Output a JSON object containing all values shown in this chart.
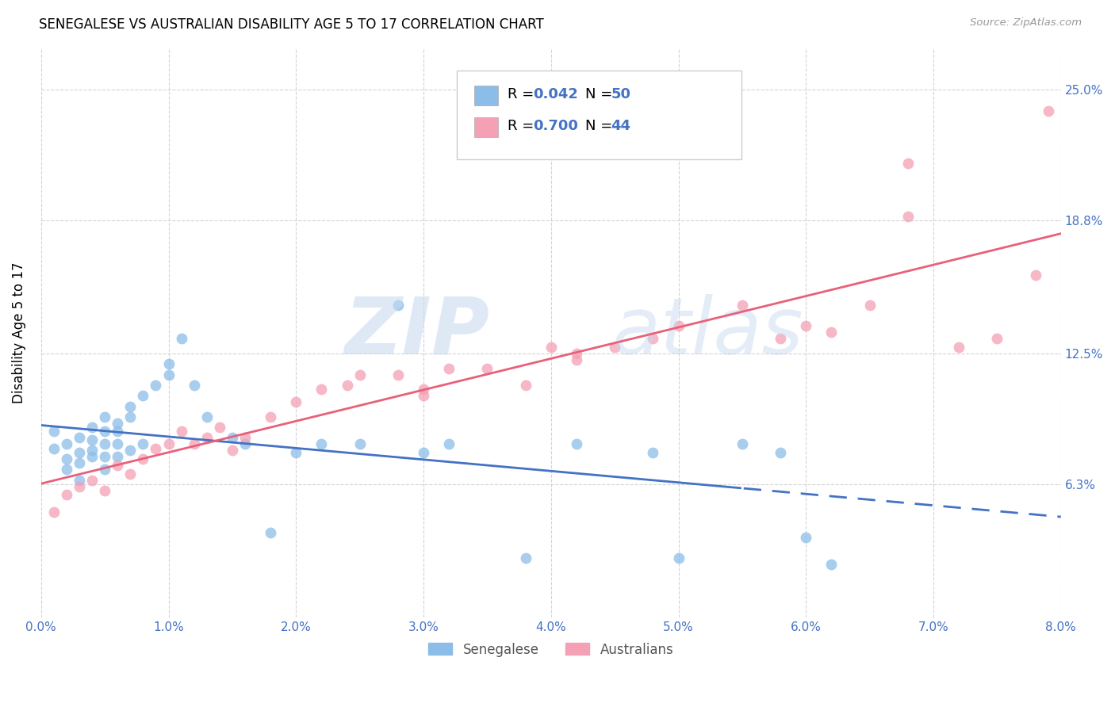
{
  "title": "SENEGALESE VS AUSTRALIAN DISABILITY AGE 5 TO 17 CORRELATION CHART",
  "source": "Source: ZipAtlas.com",
  "ylabel": "Disability Age 5 to 17",
  "ytick_labels": [
    "6.3%",
    "12.5%",
    "18.8%",
    "25.0%"
  ],
  "ytick_values": [
    0.063,
    0.125,
    0.188,
    0.25
  ],
  "legend_labels": [
    "Senegalese",
    "Australians"
  ],
  "legend_R": [
    "0.042",
    "0.700"
  ],
  "legend_N": [
    "50",
    "44"
  ],
  "color_senegalese": "#8bbde8",
  "color_australians": "#f4a0b5",
  "color_line_senegalese": "#4472c4",
  "color_line_australians": "#e8607a",
  "color_axis_text": "#4472c4",
  "senegalese_x": [
    0.001,
    0.001,
    0.002,
    0.002,
    0.002,
    0.003,
    0.003,
    0.003,
    0.003,
    0.004,
    0.004,
    0.004,
    0.004,
    0.005,
    0.005,
    0.005,
    0.005,
    0.005,
    0.006,
    0.006,
    0.006,
    0.006,
    0.007,
    0.007,
    0.007,
    0.008,
    0.008,
    0.009,
    0.01,
    0.01,
    0.011,
    0.012,
    0.013,
    0.015,
    0.016,
    0.018,
    0.02,
    0.022,
    0.025,
    0.028,
    0.03,
    0.032,
    0.038,
    0.042,
    0.048,
    0.05,
    0.055,
    0.058,
    0.06,
    0.062
  ],
  "senegalese_y": [
    0.08,
    0.088,
    0.082,
    0.075,
    0.07,
    0.085,
    0.078,
    0.073,
    0.065,
    0.084,
    0.079,
    0.09,
    0.076,
    0.088,
    0.082,
    0.076,
    0.07,
    0.095,
    0.092,
    0.088,
    0.082,
    0.076,
    0.1,
    0.095,
    0.079,
    0.105,
    0.082,
    0.11,
    0.115,
    0.12,
    0.132,
    0.11,
    0.095,
    0.085,
    0.082,
    0.04,
    0.078,
    0.082,
    0.082,
    0.148,
    0.078,
    0.082,
    0.028,
    0.082,
    0.078,
    0.028,
    0.082,
    0.078,
    0.038,
    0.025
  ],
  "australians_x": [
    0.001,
    0.002,
    0.003,
    0.004,
    0.005,
    0.006,
    0.007,
    0.008,
    0.009,
    0.01,
    0.011,
    0.012,
    0.013,
    0.014,
    0.015,
    0.016,
    0.018,
    0.02,
    0.022,
    0.024,
    0.025,
    0.028,
    0.03,
    0.03,
    0.032,
    0.035,
    0.038,
    0.04,
    0.042,
    0.042,
    0.045,
    0.048,
    0.05,
    0.055,
    0.058,
    0.06,
    0.062,
    0.065,
    0.068,
    0.068,
    0.072,
    0.075,
    0.078,
    0.079
  ],
  "australians_y": [
    0.05,
    0.058,
    0.062,
    0.065,
    0.06,
    0.072,
    0.068,
    0.075,
    0.08,
    0.082,
    0.088,
    0.082,
    0.085,
    0.09,
    0.079,
    0.085,
    0.095,
    0.102,
    0.108,
    0.11,
    0.115,
    0.115,
    0.108,
    0.105,
    0.118,
    0.118,
    0.11,
    0.128,
    0.125,
    0.122,
    0.128,
    0.132,
    0.138,
    0.148,
    0.132,
    0.138,
    0.135,
    0.148,
    0.19,
    0.215,
    0.128,
    0.132,
    0.162,
    0.24
  ],
  "xlim": [
    0.0,
    0.08
  ],
  "ylim": [
    0.0,
    0.27
  ],
  "xtick_vals": [
    0.0,
    0.01,
    0.02,
    0.03,
    0.04,
    0.05,
    0.06,
    0.07,
    0.08
  ],
  "xtick_labels": [
    "0.0%",
    "1.0%",
    "2.0%",
    "3.0%",
    "4.0%",
    "5.0%",
    "6.0%",
    "7.0%",
    "8.0%"
  ],
  "sen_line_solid_end": 0.055,
  "aus_line_end": 0.08
}
